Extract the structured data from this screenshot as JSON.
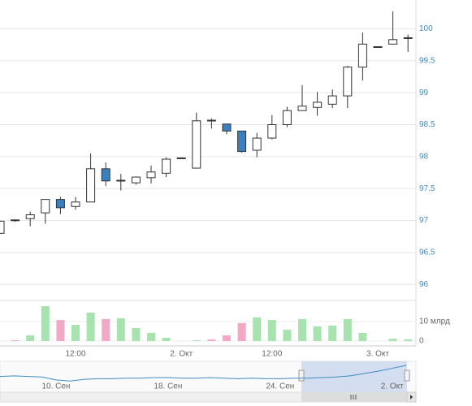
{
  "chart_data": [
    {
      "type": "candlestick",
      "categories": [
        null,
        null,
        null,
        null,
        null,
        "12:00",
        null,
        null,
        null,
        null,
        null,
        null,
        "2. Окт",
        null,
        null,
        null,
        null,
        null,
        "12:00",
        null,
        null,
        null,
        null,
        null,
        null,
        "3. Окт",
        null,
        null
      ],
      "open": [
        96.8,
        97.0,
        97.03,
        97.12,
        97.33,
        97.22,
        97.29,
        97.81,
        97.62,
        97.59,
        97.67,
        97.74,
        97.97,
        97.82,
        98.56,
        98.51,
        98.4,
        98.1,
        98.29,
        98.5,
        98.72,
        98.77,
        98.82,
        98.95,
        99.4,
        99.72,
        99.76,
        99.86
      ],
      "high": [
        97.0,
        97.02,
        97.14,
        97.33,
        97.37,
        97.37,
        98.05,
        97.91,
        97.73,
        97.69,
        97.86,
        97.99,
        97.98,
        98.69,
        98.6,
        98.51,
        98.4,
        98.37,
        98.65,
        98.78,
        99.12,
        99.01,
        99.05,
        99.42,
        99.94,
        99.72,
        100.27,
        99.91
      ],
      "low": [
        96.79,
        96.98,
        96.91,
        96.95,
        97.1,
        97.17,
        97.29,
        97.54,
        97.47,
        97.56,
        97.58,
        97.68,
        97.97,
        97.82,
        98.44,
        98.35,
        98.06,
        97.99,
        98.27,
        98.46,
        98.72,
        98.64,
        98.76,
        98.76,
        99.19,
        99.72,
        99.76,
        99.64
      ],
      "close": [
        96.99,
        97.01,
        97.09,
        97.33,
        97.2,
        97.29,
        97.81,
        97.62,
        97.63,
        97.68,
        97.76,
        97.96,
        97.98,
        98.56,
        98.57,
        98.4,
        98.08,
        98.29,
        98.5,
        98.72,
        98.79,
        98.85,
        98.95,
        99.4,
        99.76,
        99.72,
        99.83,
        99.85
      ],
      "up_color": "#ffffff",
      "down_color": "#3a80bf",
      "ylim": [
        95.75,
        100.45
      ],
      "yticks": [
        96,
        96.5,
        97,
        97.5,
        98,
        98.5,
        99,
        99.5,
        100
      ],
      "grid": true
    },
    {
      "type": "bar",
      "values": [
        0,
        0.4,
        2.9,
        17.9,
        10.8,
        8.3,
        14.6,
        11.3,
        11.7,
        6.7,
        4.2,
        1.7,
        0,
        0.4,
        0.8,
        2.9,
        9.2,
        12.1,
        10.8,
        5.8,
        11.3,
        7.5,
        7.9,
        11.3,
        4.2,
        0,
        1.2,
        0.8
      ],
      "colors": [
        "#a6e3ae",
        "#f3a9c6",
        "#a6e3ae",
        "#a6e3ae",
        "#f3a9c6",
        "#a6e3ae",
        "#a6e3ae",
        "#f3a9c6",
        "#a6e3ae",
        "#a6e3ae",
        "#a6e3ae",
        "#a6e3ae",
        "#a6e3ae",
        "#a6e3ae",
        "#f3a9c6",
        "#f3a9c6",
        "#f3a9c6",
        "#a6e3ae",
        "#a6e3ae",
        "#a6e3ae",
        "#a6e3ae",
        "#a6e3ae",
        "#a6e3ae",
        "#a6e3ae",
        "#a6e3ae",
        "#a6e3ae",
        "#a6e3ae",
        "#a6e3ae"
      ],
      "ylim": [
        0,
        20
      ],
      "yticks": [
        0,
        {
          "value": 10,
          "label": "10 млрд"
        }
      ],
      "grid": true
    },
    {
      "type": "line",
      "categories": [
        null,
        null,
        null,
        null,
        "10. Сен",
        null,
        null,
        null,
        null,
        null,
        null,
        null,
        "18. Сен",
        null,
        null,
        null,
        null,
        null,
        null,
        null,
        "24. Сен",
        null,
        null,
        null,
        null,
        null,
        null,
        null,
        "2. Окт",
        null
      ],
      "values": [
        97.9,
        98.0,
        97.9,
        97.8,
        97.3,
        97.1,
        97.4,
        97.5,
        97.5,
        97.6,
        97.6,
        97.7,
        97.7,
        97.6,
        97.6,
        97.7,
        97.6,
        97.5,
        97.6,
        97.5,
        97.5,
        97.6,
        97.6,
        97.7,
        97.8,
        98.0,
        98.4,
        98.8,
        99.3,
        99.8
      ],
      "color": "#3c8cc0",
      "ylim": [
        93.5,
        100.5
      ]
    }
  ]
}
